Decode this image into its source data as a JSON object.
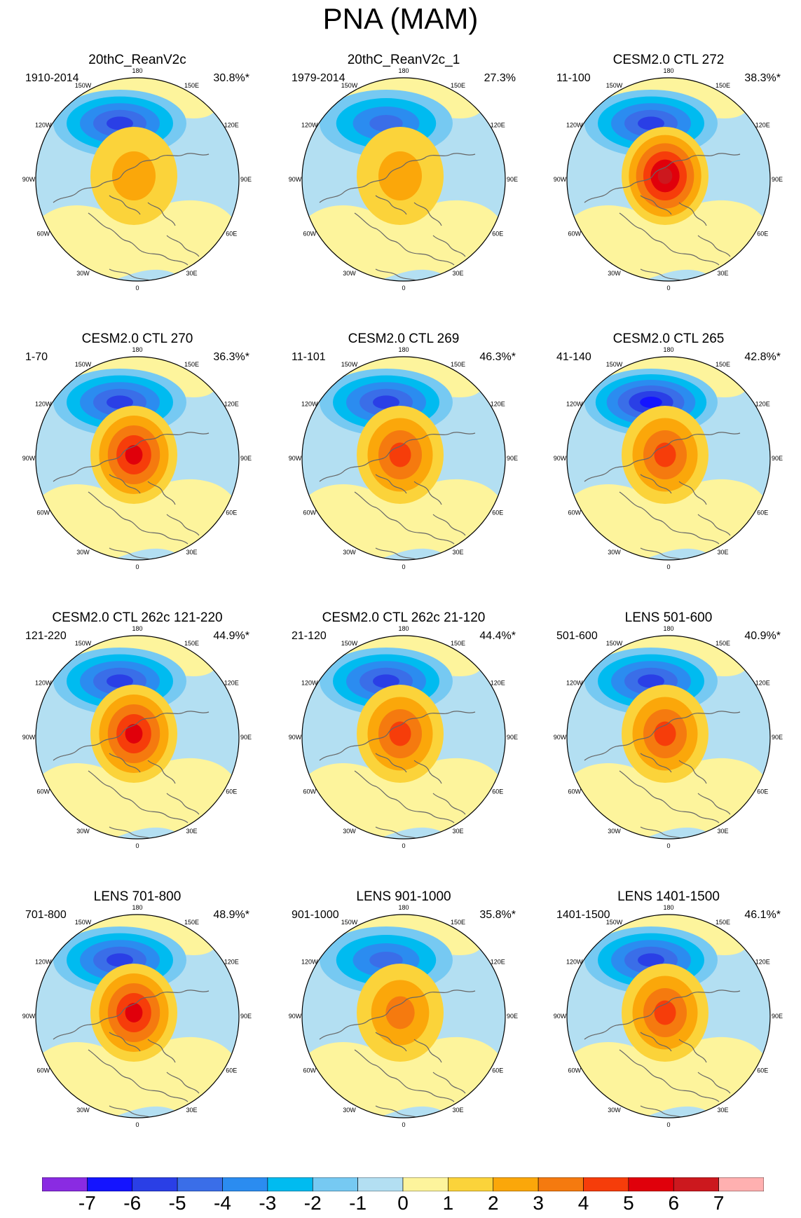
{
  "title": "PNA (MAM)",
  "colorbar": {
    "labels": [
      "-7",
      "-6",
      "-5",
      "-4",
      "-3",
      "-2",
      "-1",
      "0",
      "1",
      "2",
      "3",
      "4",
      "5",
      "6",
      "7"
    ],
    "colors": [
      "#8a2be2",
      "#1414ff",
      "#2a3fe6",
      "#3a6ee8",
      "#2b8cf0",
      "#00bbf0",
      "#76c9f2",
      "#b3dff2",
      "#fdf49c",
      "#fbd33a",
      "#fba70a",
      "#f57a0f",
      "#f63d0a",
      "#e0000b",
      "#cc181e",
      "#ffb0b0"
    ]
  },
  "map_labels": {
    "lon_top": "180",
    "lon_150w": "150W",
    "lon_150e": "150E",
    "lon_120w": "120W",
    "lon_120e": "120E",
    "lon_90w": "90W",
    "lon_90e": "90E",
    "lon_60w": "60W",
    "lon_60e": "60E",
    "lon_30w": "30W",
    "lon_30e": "30E",
    "lon_bottom": "0"
  },
  "panels": [
    {
      "title": "20thC_ReanV2c",
      "years": "1910-2014",
      "pct": "30.8%*",
      "pos_min": 2,
      "neg_min": -5
    },
    {
      "title": "20thC_ReanV2c_1",
      "years": "1979-2014",
      "pct": "27.3%",
      "pos_min": 2,
      "neg_min": -4
    },
    {
      "title": "CESM2.0 CTL 272",
      "years": "11-100",
      "pct": "38.3%*",
      "pos_min": 6,
      "neg_min": -5
    },
    {
      "title": "CESM2.0 CTL 270",
      "years": "1-70",
      "pct": "36.3%*",
      "pos_min": 5,
      "neg_min": -5
    },
    {
      "title": "CESM2.0 CTL 269",
      "years": "11-101",
      "pct": "46.3%*",
      "pos_min": 4,
      "neg_min": -5
    },
    {
      "title": "CESM2.0 CTL 265",
      "years": "41-140",
      "pct": "42.8%*",
      "pos_min": 4,
      "neg_min": -6
    },
    {
      "title": "CESM2.0 CTL 262c 121-220",
      "years": "121-220",
      "pct": "44.9%*",
      "pos_min": 5,
      "neg_min": -5
    },
    {
      "title": "CESM2.0 CTL 262c 21-120",
      "years": "21-120",
      "pct": "44.4%*",
      "pos_min": 4,
      "neg_min": -5
    },
    {
      "title": "LENS 501-600",
      "years": "501-600",
      "pct": "40.9%*",
      "pos_min": 4,
      "neg_min": -5
    },
    {
      "title": "LENS 701-800",
      "years": "701-800",
      "pct": "48.9%*",
      "pos_min": 5,
      "neg_min": -5
    },
    {
      "title": "LENS 901-1000",
      "years": "901-1000",
      "pct": "35.8%*",
      "pos_min": 3,
      "neg_min": -4
    },
    {
      "title": "LENS 1401-1500",
      "years": "1401-1500",
      "pct": "46.1%*",
      "pos_min": 4,
      "neg_min": -5
    }
  ]
}
